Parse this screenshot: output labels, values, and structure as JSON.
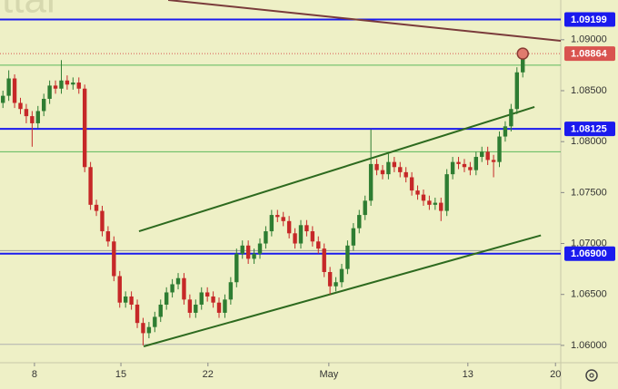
{
  "chart_data": {
    "type": "candlestick",
    "watermark": "ttar",
    "x": [
      0,
      1,
      2,
      3,
      4,
      5,
      6,
      7,
      8,
      9,
      10,
      11,
      12,
      13,
      14,
      15,
      16,
      17,
      18,
      19,
      20,
      21,
      22,
      23,
      24,
      25,
      26,
      27,
      28,
      29,
      30,
      31,
      32,
      33,
      34,
      35,
      36,
      37,
      38,
      39,
      40,
      41,
      42,
      43,
      44,
      45,
      46,
      47,
      48,
      49,
      50,
      51,
      52,
      53,
      54,
      55,
      56,
      57,
      58,
      59,
      60,
      61,
      62,
      63,
      64,
      65,
      66,
      67,
      68,
      69,
      70,
      71,
      72,
      73,
      74,
      75,
      76,
      77,
      78,
      79,
      80,
      81,
      82,
      83,
      84,
      85,
      86,
      87,
      88,
      89
    ],
    "open": [
      1.0838,
      1.0845,
      1.0862,
      1.0838,
      1.0832,
      1.0825,
      1.0818,
      1.083,
      1.0842,
      1.0855,
      1.0852,
      1.086,
      1.0856,
      1.0858,
      1.0852,
      1.0775,
      1.0738,
      1.0732,
      1.0712,
      1.0702,
      1.0668,
      1.0642,
      1.0648,
      1.064,
      1.0622,
      1.0612,
      1.0618,
      1.0628,
      1.064,
      1.0652,
      1.066,
      1.0666,
      1.0645,
      1.0632,
      1.064,
      1.0652,
      1.0648,
      1.0642,
      1.0632,
      1.0645,
      1.0662,
      1.069,
      1.0698,
      1.0685,
      1.069,
      1.07,
      1.0712,
      1.0728,
      1.0726,
      1.0722,
      1.071,
      1.07,
      1.0718,
      1.0712,
      1.0702,
      1.0695,
      1.0672,
      1.0658,
      1.0662,
      1.0675,
      1.0698,
      1.0715,
      1.0728,
      1.0742,
      1.0778,
      1.0772,
      1.0768,
      1.078,
      1.0775,
      1.077,
      1.0765,
      1.0752,
      1.0748,
      1.0742,
      1.0738,
      1.074,
      1.0732,
      1.0768,
      1.078,
      1.0778,
      1.0775,
      1.0772,
      1.0785,
      1.079,
      1.0782,
      1.078,
      1.0805,
      1.0815,
      1.0832,
      1.0868
    ],
    "high": [
      1.085,
      1.087,
      1.0866,
      1.0843,
      1.0837,
      1.083,
      1.0835,
      1.0847,
      1.086,
      1.086,
      1.088,
      1.0865,
      1.0863,
      1.0863,
      1.0856,
      1.078,
      1.0743,
      1.0737,
      1.0717,
      1.0707,
      1.0673,
      1.0653,
      1.0653,
      1.0645,
      1.0627,
      1.0623,
      1.0633,
      1.0645,
      1.0657,
      1.0665,
      1.0671,
      1.0671,
      1.065,
      1.0645,
      1.0657,
      1.0657,
      1.0653,
      1.0647,
      1.065,
      1.0667,
      1.0695,
      1.0703,
      1.0703,
      1.0695,
      1.0705,
      1.0717,
      1.0733,
      1.0733,
      1.0731,
      1.0727,
      1.0715,
      1.0723,
      1.0723,
      1.0717,
      1.0707,
      1.07,
      1.0677,
      1.0667,
      1.068,
      1.0703,
      1.072,
      1.0733,
      1.0747,
      1.0812,
      1.0783,
      1.0777,
      1.0788,
      1.0785,
      1.078,
      1.0775,
      1.077,
      1.0757,
      1.0753,
      1.0747,
      1.0745,
      1.0745,
      1.0773,
      1.0785,
      1.0785,
      1.0783,
      1.078,
      1.079,
      1.0795,
      1.0795,
      1.0787,
      1.081,
      1.082,
      1.0837,
      1.0873,
      1.0892
    ],
    "low": [
      1.0833,
      1.084,
      1.0833,
      1.0827,
      1.0818,
      1.0795,
      1.0813,
      1.0825,
      1.0837,
      1.0847,
      1.0847,
      1.0851,
      1.0851,
      1.0847,
      1.077,
      1.0733,
      1.0727,
      1.0707,
      1.0697,
      1.0663,
      1.0637,
      1.0637,
      1.0635,
      1.0617,
      1.06,
      1.0607,
      1.0613,
      1.0623,
      1.0635,
      1.0647,
      1.0655,
      1.064,
      1.0627,
      1.0627,
      1.0635,
      1.0643,
      1.0637,
      1.0627,
      1.0627,
      1.064,
      1.0657,
      1.0685,
      1.068,
      1.068,
      1.0685,
      1.0695,
      1.0707,
      1.0721,
      1.0717,
      1.0705,
      1.0695,
      1.0695,
      1.0707,
      1.0697,
      1.069,
      1.0667,
      1.065,
      1.0653,
      1.0657,
      1.067,
      1.0693,
      1.071,
      1.0723,
      1.0737,
      1.0767,
      1.0763,
      1.0763,
      1.077,
      1.0765,
      1.076,
      1.0747,
      1.0743,
      1.0737,
      1.0733,
      1.0733,
      1.0722,
      1.0727,
      1.0763,
      1.0773,
      1.077,
      1.0767,
      1.0767,
      1.078,
      1.0777,
      1.0765,
      1.0775,
      1.08,
      1.081,
      1.0827,
      1.0863
    ],
    "close": [
      1.0845,
      1.0862,
      1.0838,
      1.0832,
      1.0825,
      1.0818,
      1.083,
      1.0842,
      1.0855,
      1.0852,
      1.086,
      1.0856,
      1.0858,
      1.0852,
      1.0775,
      1.0738,
      1.0732,
      1.0712,
      1.0702,
      1.0668,
      1.0642,
      1.0648,
      1.064,
      1.0622,
      1.0612,
      1.0618,
      1.0628,
      1.064,
      1.0652,
      1.066,
      1.0666,
      1.0645,
      1.0632,
      1.064,
      1.0652,
      1.0648,
      1.0642,
      1.0632,
      1.0645,
      1.0662,
      1.069,
      1.0698,
      1.0685,
      1.069,
      1.07,
      1.0712,
      1.0728,
      1.0726,
      1.0722,
      1.071,
      1.07,
      1.0718,
      1.0712,
      1.0702,
      1.0695,
      1.0672,
      1.0658,
      1.0662,
      1.0675,
      1.0698,
      1.0715,
      1.0728,
      1.0742,
      1.0778,
      1.0772,
      1.0768,
      1.078,
      1.0775,
      1.077,
      1.0765,
      1.0752,
      1.0748,
      1.0742,
      1.0738,
      1.074,
      1.0732,
      1.0768,
      1.078,
      1.0778,
      1.0775,
      1.0772,
      1.0785,
      1.079,
      1.0782,
      1.078,
      1.0805,
      1.0815,
      1.0832,
      1.0868,
      1.0886
    ],
    "up_color": "#2e7d32",
    "down_color": "#c62828",
    "xlim": [
      -0.5,
      95.5
    ],
    "xticks": [
      {
        "value": 5.4,
        "label": "8"
      },
      {
        "value": 20.2,
        "label": "15"
      },
      {
        "value": 35.1,
        "label": "22"
      },
      {
        "value": 55.8,
        "label": "May"
      },
      {
        "value": 79.6,
        "label": "13"
      },
      {
        "value": 94.6,
        "label": "20"
      }
    ],
    "ylim": [
      1.0583,
      1.0939
    ],
    "yticks": [
      {
        "value": 1.09,
        "label": "1.09000"
      },
      {
        "value": 1.085,
        "label": "1.08500"
      },
      {
        "value": 1.08,
        "label": "1.08000"
      },
      {
        "value": 1.075,
        "label": "1.07500"
      },
      {
        "value": 1.07,
        "label": "1.07000"
      },
      {
        "value": 1.065,
        "label": "1.06500"
      },
      {
        "value": 1.06,
        "label": "1.06000"
      }
    ],
    "levels": [
      {
        "value": 1.09199,
        "label": "1.09199",
        "color": "#1a1aee"
      },
      {
        "value": 1.08125,
        "label": "1.08125",
        "color": "#1a1aee"
      },
      {
        "value": 1.069,
        "label": "1.06900",
        "color": "#1a1aee"
      }
    ],
    "last_price": {
      "value": 1.08864,
      "label": "1.08864",
      "color": "#d9534f"
    },
    "horizontal_lines": [
      {
        "value": 1.0875,
        "color": "#5cb85c"
      },
      {
        "value": 1.079,
        "color": "#5cb85c"
      },
      {
        "value": 1.0693,
        "color": "#9a9a9a"
      },
      {
        "value": 1.0601,
        "color": "#b0b0b0"
      }
    ],
    "trend_lines": [
      {
        "x": [
          23.3,
          91.0
        ],
        "y": [
          1.0712,
          1.0834
        ],
        "color": "#2d6a1f"
      },
      {
        "x": [
          24.1,
          92.1
        ],
        "y": [
          1.0599,
          1.0708
        ],
        "color": "#2d6a1f"
      },
      {
        "x": [
          28.3,
          95.5
        ],
        "y": [
          1.0939,
          1.0899
        ],
        "color": "#7a3b3b"
      }
    ]
  }
}
